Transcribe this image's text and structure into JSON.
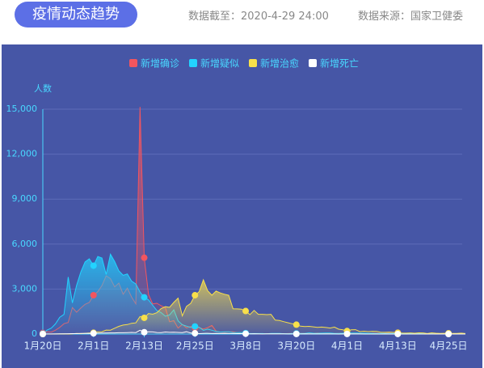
{
  "header": {
    "badge": "疫情动态趋势",
    "updated": "数据截至：2020-4-29 24:00",
    "source": "数据来源：国家卫健委"
  },
  "chart_data": {
    "type": "line",
    "y_label": "人数",
    "categories": [
      "1月20日",
      null,
      null,
      null,
      null,
      null,
      null,
      null,
      null,
      null,
      null,
      null,
      "2月1日",
      null,
      null,
      null,
      null,
      null,
      null,
      null,
      null,
      null,
      null,
      null,
      "2月13日",
      null,
      null,
      null,
      null,
      null,
      null,
      null,
      null,
      null,
      null,
      null,
      "2月25日",
      null,
      null,
      null,
      null,
      null,
      null,
      null,
      null,
      null,
      null,
      null,
      "3月8日",
      null,
      null,
      null,
      null,
      null,
      null,
      null,
      null,
      null,
      null,
      null,
      "3月20日",
      null,
      null,
      null,
      null,
      null,
      null,
      null,
      null,
      null,
      null,
      null,
      "4月1日",
      null,
      null,
      null,
      null,
      null,
      null,
      null,
      null,
      null,
      null,
      null,
      "4月13日",
      null,
      null,
      null,
      null,
      null,
      null,
      null,
      null,
      null,
      null,
      null,
      "4月25日",
      null,
      null,
      null,
      null
    ],
    "series": [
      {
        "name": "新增确诊",
        "color": "#f2555f",
        "values": [
          77,
          149,
          131,
          259,
          444,
          688,
          769,
          1771,
          1459,
          1737,
          1982,
          2102,
          2590,
          2829,
          3235,
          3887,
          3694,
          3143,
          3399,
          2656,
          3062,
          2478,
          2015,
          15152,
          5090,
          2641,
          2009,
          2048,
          1886,
          1749,
          820,
          889,
          397,
          648,
          409,
          508,
          406,
          433,
          327,
          427,
          573,
          202,
          125,
          119,
          139,
          143,
          99,
          44,
          40,
          19,
          24,
          15,
          8,
          11,
          20,
          16,
          21,
          13,
          34,
          39,
          41,
          46,
          39,
          78,
          47,
          67,
          55,
          54,
          45,
          31,
          48,
          36,
          35,
          31,
          19,
          30,
          39,
          32,
          62,
          63,
          42,
          46,
          99,
          108,
          89,
          46,
          46,
          26,
          27,
          16,
          12,
          11,
          30,
          30,
          10,
          6,
          11,
          3,
          6,
          22,
          4
        ]
      },
      {
        "name": "新增疑似",
        "color": "#22d3ff",
        "values": [
          27,
          257,
          393,
          680,
          1118,
          1309,
          3806,
          2077,
          3248,
          4148,
          4812,
          5019,
          4562,
          5173,
          5072,
          3971,
          5328,
          4833,
          4214,
          3916,
          4008,
          3536,
          3342,
          2807,
          2450,
          2277,
          1918,
          1563,
          1432,
          1185,
          1277,
          1614,
          882,
          620,
          530,
          439,
          508,
          452,
          248,
          329,
          251,
          180,
          129,
          143,
          143,
          102,
          99,
          102,
          60,
          36,
          31,
          33,
          33,
          17,
          39,
          41,
          45,
          21,
          23,
          45,
          42,
          40,
          37,
          82,
          55,
          48,
          57,
          70,
          64,
          43,
          44,
          55,
          79,
          72,
          66,
          60,
          58,
          51,
          49,
          45,
          43,
          40,
          38,
          36,
          35,
          32,
          30,
          28,
          26,
          25,
          22,
          20,
          19,
          18,
          16,
          15,
          14,
          12,
          11,
          10,
          9
        ]
      },
      {
        "name": "新增治愈",
        "color": "#f8e04a",
        "values": [
          0,
          0,
          0,
          6,
          3,
          11,
          2,
          9,
          43,
          21,
          47,
          72,
          85,
          147,
          157,
          262,
          261,
          387,
          510,
          600,
          632,
          716,
          744,
          1171,
          1081,
          1373,
          1323,
          1425,
          1701,
          1824,
          1779,
          2109,
          2394,
          1209,
          1846,
          2051,
          2589,
          2825,
          3622,
          2885,
          2589,
          2867,
          2742,
          2652,
          2582,
          1681,
          1678,
          1661,
          1535,
          1297,
          1578,
          1318,
          1318,
          1294,
          1314,
          930,
          901,
          827,
          757,
          686,
          624,
          526,
          498,
          515,
          481,
          446,
          465,
          437,
          400,
          462,
          322,
          281,
          201,
          278,
          293,
          161,
          187,
          161,
          182,
          170,
          116,
          114,
          129,
          110,
          86,
          66,
          60,
          74,
          56,
          80,
          76,
          34,
          79,
          55,
          39,
          48,
          53,
          41,
          43,
          59,
          35
        ]
      },
      {
        "name": "新增死亡",
        "color": "#ffffff",
        "values": [
          0,
          3,
          8,
          8,
          16,
          15,
          24,
          26,
          26,
          38,
          43,
          46,
          45,
          57,
          64,
          65,
          73,
          73,
          86,
          89,
          97,
          108,
          97,
          254,
          121,
          143,
          142,
          105,
          98,
          136,
          114,
          118,
          109,
          97,
          150,
          71,
          52,
          29,
          44,
          47,
          35,
          42,
          31,
          38,
          31,
          30,
          28,
          27,
          22,
          17,
          22,
          11,
          7,
          13,
          10,
          14,
          13,
          11,
          8,
          3,
          7,
          6,
          9,
          7,
          4,
          6,
          5,
          3,
          5,
          4,
          1,
          7,
          6,
          4,
          4,
          3,
          1,
          0,
          2,
          2,
          1,
          3,
          0,
          0,
          2,
          0,
          0,
          1,
          0,
          0,
          0,
          0,
          0,
          0,
          0,
          0,
          0,
          0,
          0,
          0,
          0
        ]
      }
    ],
    "ylim": [
      0,
      15000
    ],
    "yticks": [
      0,
      {
        "value": 3000,
        "label": "3,000"
      },
      {
        "value": 6000,
        "label": "6,000"
      },
      {
        "value": 9000,
        "label": "9,000"
      },
      {
        "value": 12000,
        "label": "12,000"
      },
      {
        "value": 15000,
        "label": "15,000"
      }
    ],
    "grid": true,
    "legend": "top"
  }
}
